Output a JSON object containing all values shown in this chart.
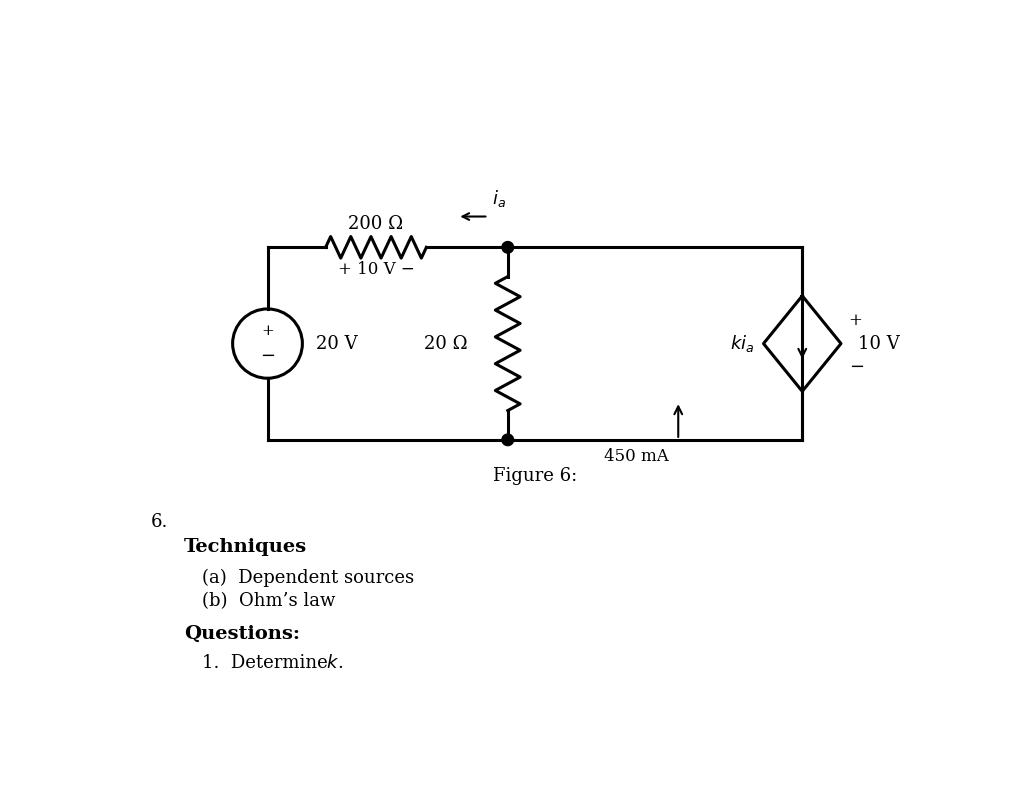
{
  "figure_caption": "Figure 6:",
  "section_number": "6.",
  "techniques_label": "Techniques",
  "item_a": "(a)  Dependent sources",
  "item_b": "(b)  Ohm’s law",
  "questions_label": "Questions:",
  "question_1": "1.  Determine ",
  "question_1_italic": "k",
  "question_1_end": ".",
  "bg_color": "#ffffff",
  "line_color": "#000000",
  "resistor_200_label": "200 Ω",
  "voltage_label_resistor": "+ 10 V −",
  "source_label": "20 V",
  "resistor_20_label": "20 Ω",
  "dep_current_label": "ki_a",
  "dep_voltage_label": "10 V",
  "current_label": "450 mA",
  "ia_label": "i_a"
}
